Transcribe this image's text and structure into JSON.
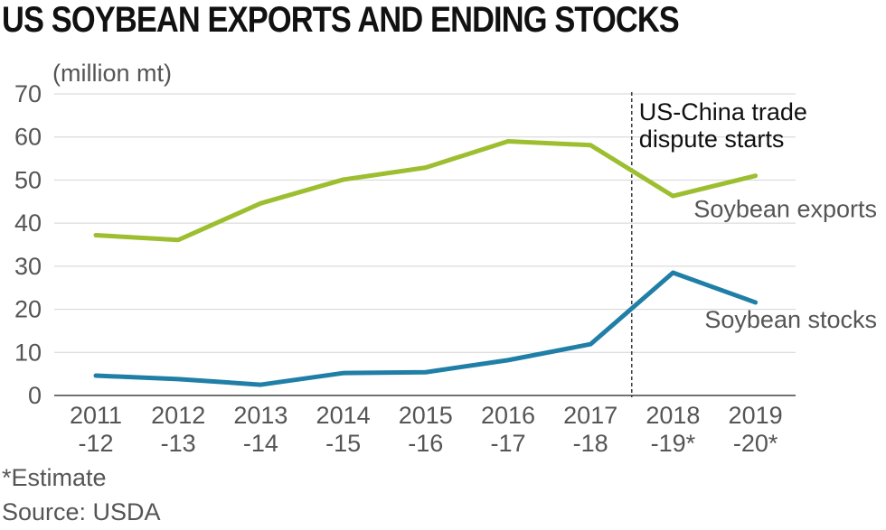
{
  "chart_data": {
    "type": "line",
    "title": "US SOYBEAN EXPORTS AND ENDING STOCKS",
    "ylabel": "(million mt)",
    "ylim": [
      0,
      70
    ],
    "yticks": [
      0,
      10,
      20,
      30,
      40,
      50,
      60,
      70
    ],
    "grid": true,
    "categories": [
      [
        "2011",
        "-12"
      ],
      [
        "2012",
        "-13"
      ],
      [
        "2013",
        "-14"
      ],
      [
        "2014",
        "-15"
      ],
      [
        "2015",
        "-16"
      ],
      [
        "2016",
        "-17"
      ],
      [
        "2017",
        "-18"
      ],
      [
        "2018",
        "-19*"
      ],
      [
        "2019",
        "-20*"
      ]
    ],
    "series": [
      {
        "name": "Soybean exports",
        "color": "#9cbe2f",
        "values": [
          37.2,
          36.1,
          44.6,
          50.1,
          52.9,
          59.0,
          58.1,
          46.3,
          51.0
        ]
      },
      {
        "name": "Soybean stocks",
        "color": "#1f7fa6",
        "values": [
          4.6,
          3.8,
          2.5,
          5.2,
          5.4,
          8.2,
          11.9,
          28.5,
          21.6
        ]
      }
    ],
    "annotation": {
      "lines": [
        "US-China trade",
        "dispute starts"
      ],
      "between_categories": [
        6,
        7
      ]
    }
  },
  "footnotes": {
    "estimate": "*Estimate",
    "source": "Source: USDA"
  }
}
